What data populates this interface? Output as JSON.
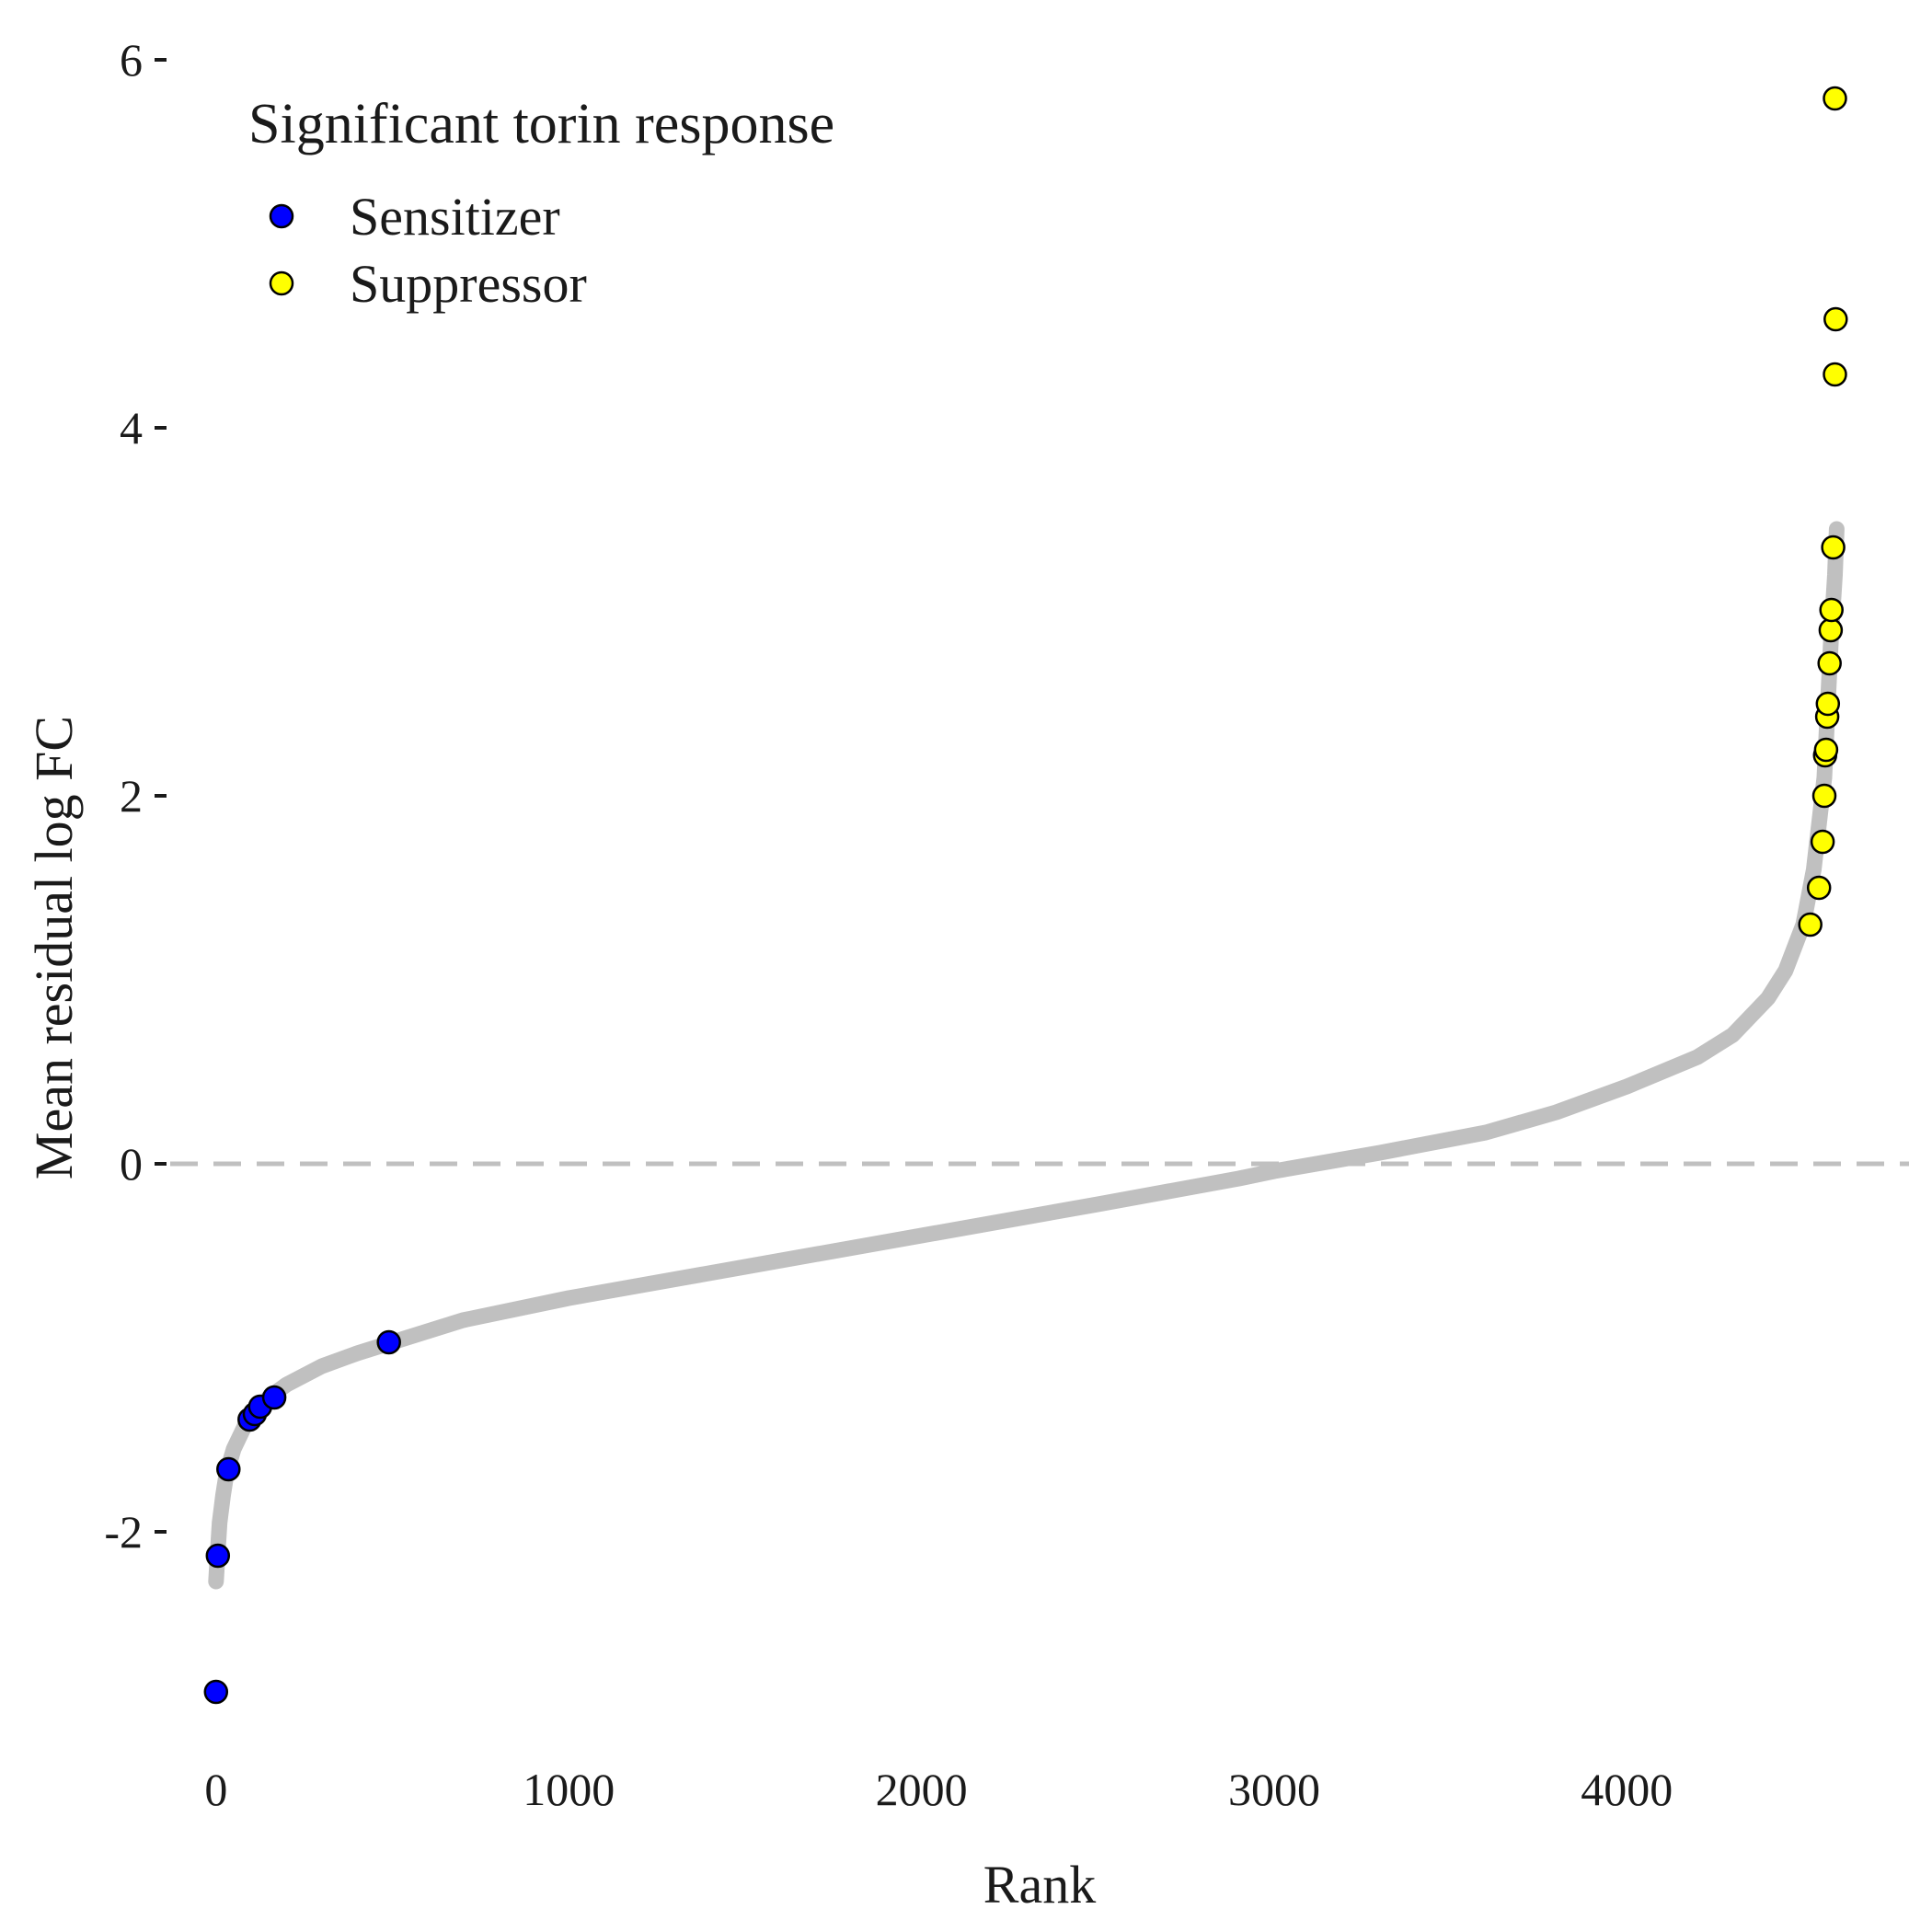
{
  "chart_data": {
    "type": "scatter",
    "title": "",
    "xlabel": "Rank",
    "ylabel": "Mean residual log FC",
    "xlim": [
      -130,
      4800
    ],
    "ylim": [
      -3.2,
      6.05
    ],
    "xticks": [
      0,
      1000,
      2000,
      3000,
      4000
    ],
    "xtick_labels": [
      "0",
      "1000",
      "2000",
      "3000",
      "4000"
    ],
    "yticks": [
      -2,
      0,
      2,
      4,
      6
    ],
    "ytick_labels": [
      "-2",
      "0",
      "2",
      "4",
      "6"
    ],
    "grid": false,
    "reference_line": {
      "y": 0,
      "style": "dashed",
      "color": "#c0c0c0"
    },
    "background_curve": {
      "color": "#c0c0c0",
      "x": [
        0,
        5,
        10,
        20,
        30,
        50,
        80,
        100,
        150,
        200,
        300,
        400,
        500,
        700,
        1000,
        1500,
        2000,
        2500,
        2900,
        3000,
        3300,
        3600,
        3800,
        4000,
        4200,
        4300,
        4400,
        4450,
        4500,
        4530,
        4560,
        4570,
        4580,
        4590,
        4595
      ],
      "y": [
        -2.27,
        -2.1,
        -1.95,
        -1.8,
        -1.68,
        -1.55,
        -1.43,
        -1.37,
        -1.27,
        -1.2,
        -1.1,
        -1.03,
        -0.97,
        -0.85,
        -0.73,
        -0.56,
        -0.39,
        -0.22,
        -0.08,
        -0.04,
        0.06,
        0.17,
        0.28,
        0.42,
        0.58,
        0.7,
        0.9,
        1.05,
        1.3,
        1.6,
        2.1,
        2.5,
        2.9,
        3.2,
        3.45
      ]
    },
    "legend": {
      "title": "Significant torin response",
      "position": "top-left",
      "entries": [
        "Sensitizer",
        "Suppressor"
      ]
    },
    "series": [
      {
        "name": "Sensitizer",
        "color": "#0000ff",
        "x": [
          0,
          5,
          35,
          95,
          110,
          125,
          165,
          490
        ],
        "y": [
          -2.87,
          -2.13,
          -1.66,
          -1.39,
          -1.36,
          -1.32,
          -1.27,
          -0.97
        ]
      },
      {
        "name": "Suppressor",
        "color": "#ffff00",
        "x": [
          4520,
          4545,
          4555,
          4560,
          4562,
          4565,
          4568,
          4570,
          4575,
          4578,
          4580,
          4585,
          4590,
          4592
        ],
        "y": [
          1.3,
          1.5,
          1.75,
          2.0,
          2.22,
          2.25,
          2.43,
          2.5,
          2.72,
          2.9,
          3.01,
          3.35,
          4.29,
          4.59
        ]
      },
      {
        "name": "Suppressor",
        "color": "#ffff00",
        "x": [
          4590
        ],
        "y": [
          5.79
        ]
      }
    ]
  }
}
